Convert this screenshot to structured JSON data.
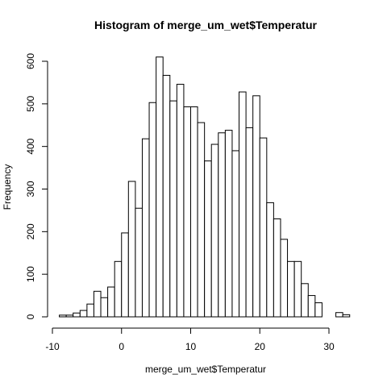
{
  "chart_data": {
    "type": "bar",
    "subtype": "histogram",
    "title": "Histogram of merge_um_wet$Temperatur",
    "xlabel": "merge_um_wet$Temperatur",
    "ylabel": "Frequency",
    "bin_width": 1,
    "bin_start": -9,
    "bin_edges_range": [
      -9,
      33
    ],
    "values": [
      4,
      4,
      9,
      15,
      30,
      60,
      45,
      70,
      130,
      197,
      318,
      255,
      418,
      503,
      610,
      567,
      507,
      546,
      493,
      493,
      456,
      366,
      405,
      432,
      438,
      390,
      528,
      444,
      519,
      420,
      268,
      230,
      182,
      130,
      130,
      78,
      50,
      33,
      0,
      0,
      10,
      5
    ],
    "xlim": [
      -10,
      30
    ],
    "ylim": [
      0,
      600
    ],
    "x_ticks": [
      -10,
      0,
      10,
      20,
      30
    ],
    "y_ticks": [
      0,
      100,
      200,
      300,
      400,
      500,
      600
    ],
    "grid": false,
    "legend": "none",
    "colors": {
      "bar_fill": "#ffffff",
      "bar_stroke": "#000000"
    }
  }
}
